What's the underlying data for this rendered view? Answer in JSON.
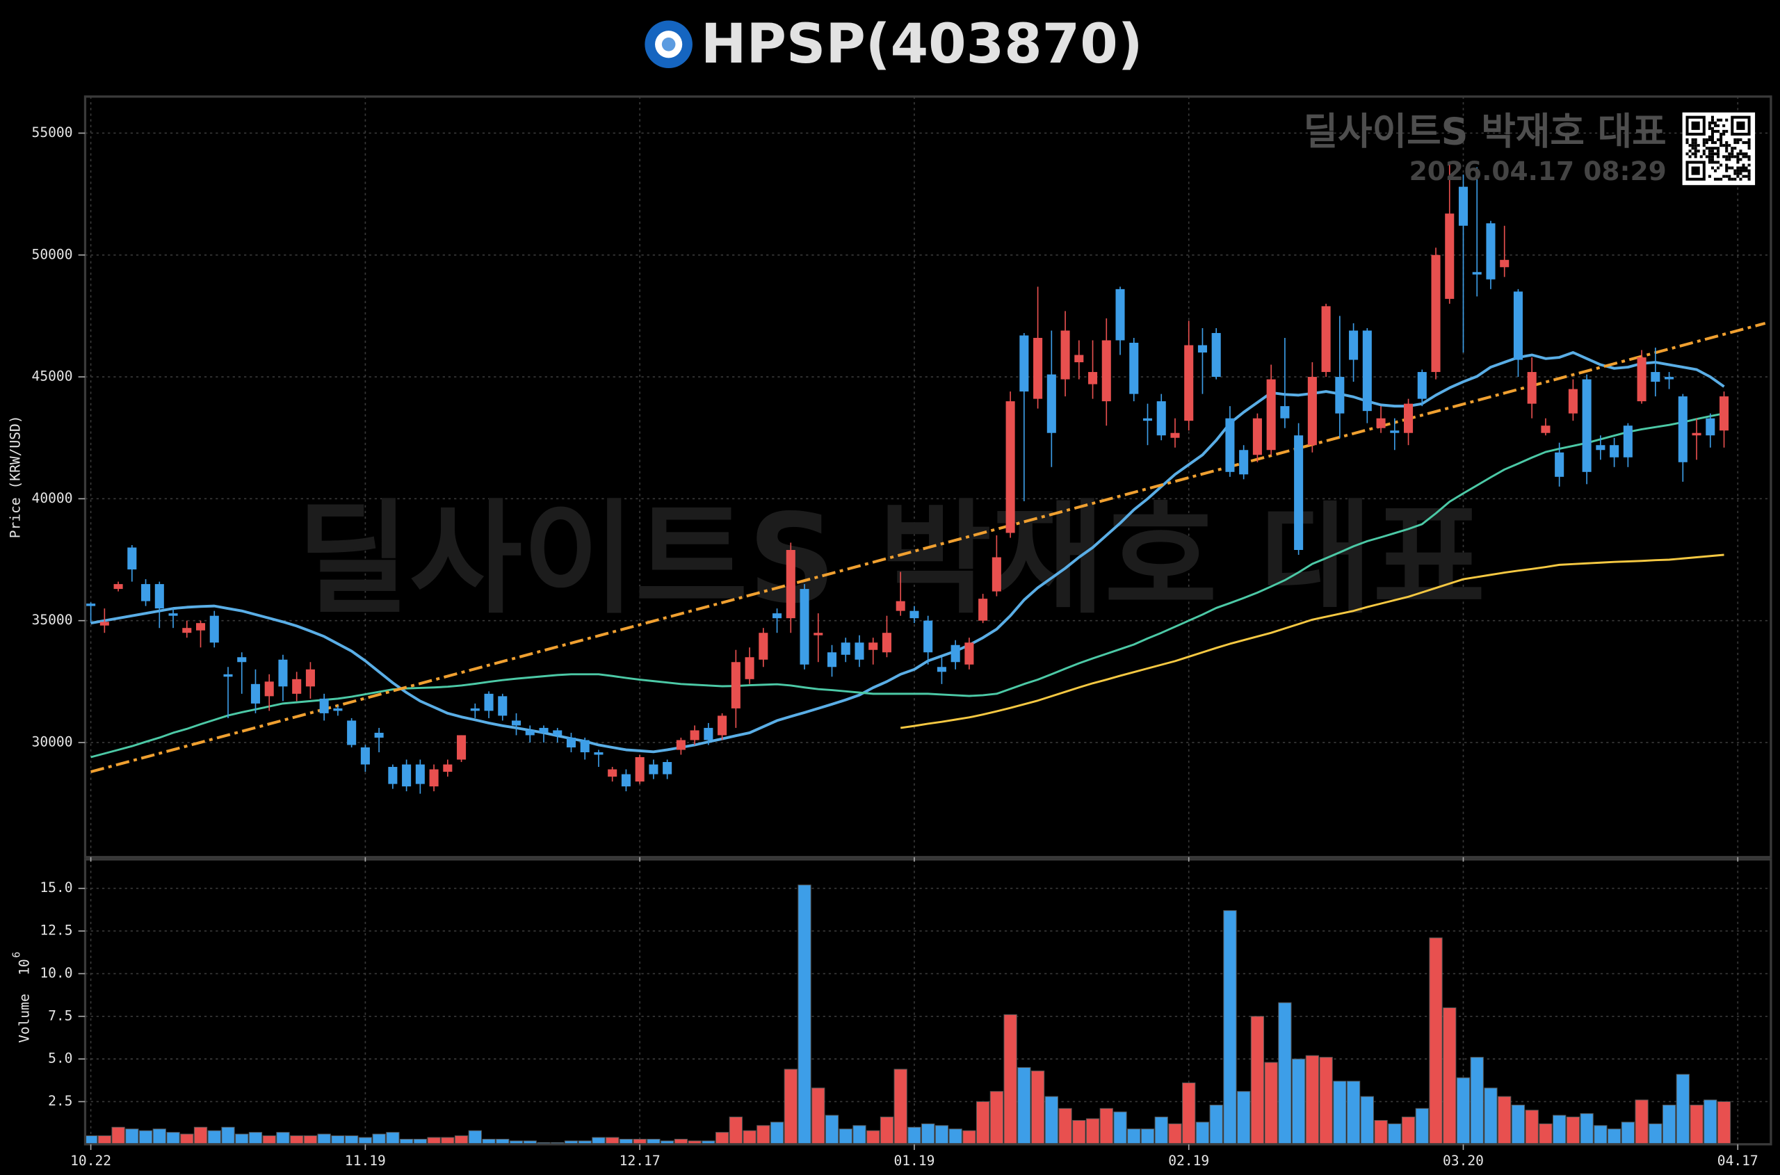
{
  "chart_data": {
    "type": "candlestick",
    "title": "HPSP(403870)",
    "y_label": "Price (KRW/USD)",
    "volume_label": "Volume",
    "volume_multiplier_base": "10",
    "volume_multiplier_exponent": "6",
    "watermark": "딜사이트S 박재호 대표",
    "timestamp": "2026.04.17 08:29",
    "grid": true,
    "up_color": "#e8504f",
    "down_color": "#3d9ee8",
    "categories": [
      "10.22",
      null,
      null,
      null,
      null,
      null,
      null,
      null,
      null,
      null,
      null,
      null,
      null,
      null,
      null,
      null,
      null,
      null,
      null,
      null,
      "11.19",
      null,
      null,
      null,
      null,
      null,
      null,
      null,
      null,
      null,
      null,
      null,
      null,
      null,
      null,
      null,
      null,
      null,
      null,
      null,
      "12.17",
      null,
      null,
      null,
      null,
      null,
      null,
      null,
      null,
      null,
      null,
      null,
      null,
      null,
      null,
      null,
      null,
      null,
      null,
      null,
      "01.19",
      null,
      null,
      null,
      null,
      null,
      null,
      null,
      null,
      null,
      null,
      null,
      null,
      null,
      null,
      null,
      null,
      null,
      null,
      null,
      "02.19",
      null,
      null,
      null,
      null,
      null,
      null,
      null,
      null,
      null,
      null,
      null,
      null,
      null,
      null,
      null,
      null,
      null,
      null,
      null,
      "03.20",
      null,
      null,
      null,
      null,
      null,
      null,
      null,
      null,
      null,
      null,
      null,
      null,
      null,
      null,
      null,
      null,
      null,
      null,
      null,
      "04.17"
    ],
    "open": [
      35700,
      34800,
      36300,
      38000,
      36500,
      36500,
      35300,
      34500,
      34600,
      35200,
      32800,
      33500,
      32400,
      31900,
      33400,
      32000,
      32300,
      31800,
      31400,
      30900,
      29800,
      30400,
      29000,
      29100,
      29100,
      28200,
      28800,
      29300,
      31400,
      32000,
      31900,
      30900,
      30500,
      30600,
      30500,
      30200,
      30100,
      29600,
      28600,
      28700,
      28400,
      29100,
      29200,
      29700,
      30100,
      30600,
      30300,
      31400,
      32600,
      33400,
      35300,
      35100,
      36300,
      34400,
      33700,
      34100,
      34100,
      33800,
      33700,
      35400,
      35400,
      35000,
      33100,
      34000,
      33200,
      35000,
      36200,
      38600,
      46700,
      44100,
      45100,
      44900,
      45600,
      44700,
      44000,
      48600,
      46400,
      43300,
      44000,
      42500,
      43200,
      46300,
      46800,
      43300,
      42000,
      41800,
      42000,
      43800,
      42600,
      42200,
      45200,
      45000,
      46900,
      46900,
      42900,
      42800,
      42700,
      45200,
      45200,
      48200,
      52800,
      49300,
      51300,
      49500,
      48500,
      43900,
      42700,
      41900,
      43500,
      44900,
      42200,
      42200,
      43000,
      44000,
      45200,
      45000,
      44200,
      42600,
      43300,
      42800,
      null
    ],
    "high": [
      35750,
      35500,
      36600,
      38100,
      36700,
      36600,
      35500,
      35000,
      35000,
      35400,
      33100,
      33700,
      33000,
      32800,
      33600,
      32900,
      33300,
      32000,
      31500,
      31000,
      29900,
      30600,
      29100,
      29300,
      29300,
      29100,
      29300,
      30300,
      31600,
      32100,
      32000,
      31200,
      30700,
      30700,
      30600,
      30400,
      30200,
      29700,
      29000,
      28900,
      29500,
      29300,
      29300,
      30200,
      30700,
      30800,
      31200,
      33800,
      33900,
      34700,
      35500,
      38200,
      36500,
      35300,
      34000,
      34300,
      34400,
      34300,
      35200,
      37000,
      35600,
      35200,
      33500,
      34200,
      34300,
      36100,
      38500,
      44400,
      46800,
      48700,
      46900,
      47700,
      46500,
      46500,
      47400,
      48700,
      46600,
      43900,
      44300,
      43300,
      47300,
      47000,
      47000,
      43800,
      42200,
      43500,
      45500,
      46600,
      43100,
      45600,
      48000,
      47500,
      47200,
      47000,
      43800,
      43300,
      44100,
      45300,
      50300,
      53800,
      53300,
      53600,
      51400,
      51200,
      48600,
      45800,
      43300,
      42300,
      44900,
      45100,
      42600,
      42500,
      43100,
      46100,
      46200,
      45200,
      44300,
      43300,
      43500,
      44400,
      null
    ],
    "low": [
      34900,
      34500,
      36200,
      36600,
      35600,
      34700,
      34700,
      34300,
      33900,
      33900,
      31000,
      32000,
      31200,
      31300,
      31700,
      31700,
      31800,
      30900,
      31100,
      29800,
      28800,
      29600,
      28100,
      28000,
      27900,
      28000,
      28600,
      29200,
      31000,
      31000,
      30900,
      30300,
      30000,
      30000,
      30000,
      29600,
      29300,
      29000,
      28400,
      28000,
      28300,
      28500,
      28500,
      29500,
      29900,
      29900,
      30100,
      30600,
      32400,
      33100,
      34500,
      34500,
      33000,
      33300,
      32700,
      33300,
      33100,
      33200,
      33500,
      35200,
      34900,
      33200,
      32400,
      33000,
      33000,
      34900,
      36000,
      38400,
      39900,
      43700,
      41300,
      44200,
      44900,
      44100,
      43000,
      45900,
      44000,
      42200,
      42400,
      42100,
      42800,
      44300,
      44900,
      40900,
      40800,
      41500,
      41800,
      42900,
      37700,
      41900,
      45000,
      42500,
      44800,
      43100,
      42700,
      42000,
      42200,
      43800,
      44900,
      48000,
      46000,
      48300,
      48600,
      49100,
      45000,
      43300,
      42600,
      40500,
      43200,
      40600,
      41600,
      41300,
      41300,
      43900,
      44200,
      44500,
      40700,
      41600,
      42100,
      42100,
      null
    ],
    "close": [
      35600,
      34950,
      36500,
      37100,
      35800,
      35500,
      35200,
      34700,
      34900,
      34100,
      32700,
      33300,
      31600,
      32500,
      32300,
      32600,
      33000,
      31200,
      31300,
      29900,
      29100,
      30200,
      28300,
      28200,
      28300,
      28900,
      29100,
      30300,
      31300,
      31300,
      31100,
      30700,
      30300,
      30400,
      30300,
      29800,
      29600,
      29500,
      28900,
      28200,
      29400,
      28700,
      28700,
      30100,
      30500,
      30100,
      31100,
      33300,
      33500,
      34500,
      35100,
      37900,
      33200,
      34500,
      33100,
      33600,
      33400,
      34100,
      34500,
      35800,
      35100,
      33700,
      32900,
      33300,
      34100,
      35900,
      37600,
      44000,
      44400,
      46600,
      42700,
      46900,
      45900,
      45200,
      46500,
      46500,
      44300,
      43200,
      42600,
      42700,
      46300,
      46000,
      45000,
      41100,
      41000,
      43300,
      44900,
      43300,
      37900,
      45000,
      47900,
      43500,
      45700,
      43600,
      43300,
      42700,
      43900,
      44100,
      50000,
      51700,
      51200,
      49200,
      49000,
      49800,
      45700,
      45200,
      43000,
      40900,
      44500,
      41100,
      42000,
      41700,
      41700,
      45800,
      44800,
      44900,
      41500,
      42700,
      42600,
      44200,
      null
    ],
    "volume": [
      0.5,
      0.5,
      1.0,
      0.9,
      0.8,
      0.9,
      0.7,
      0.6,
      1.0,
      0.8,
      1.0,
      0.6,
      0.7,
      0.5,
      0.7,
      0.5,
      0.5,
      0.6,
      0.5,
      0.5,
      0.4,
      0.6,
      0.7,
      0.3,
      0.3,
      0.4,
      0.4,
      0.5,
      0.8,
      0.3,
      0.3,
      0.2,
      0.2,
      0.1,
      0.1,
      0.2,
      0.2,
      0.4,
      0.4,
      0.3,
      0.3,
      0.3,
      0.2,
      0.3,
      0.2,
      0.2,
      0.7,
      1.6,
      0.8,
      1.1,
      1.3,
      4.4,
      15.2,
      3.3,
      1.7,
      0.9,
      1.1,
      0.8,
      1.6,
      4.4,
      1.0,
      1.2,
      1.1,
      0.9,
      0.8,
      2.5,
      3.1,
      7.6,
      4.5,
      4.3,
      2.8,
      2.1,
      1.4,
      1.5,
      2.1,
      1.9,
      0.9,
      0.9,
      1.6,
      1.2,
      3.6,
      1.3,
      2.3,
      13.7,
      3.1,
      7.5,
      4.8,
      8.3,
      5.0,
      5.2,
      5.1,
      3.7,
      3.7,
      2.8,
      1.4,
      1.2,
      1.6,
      2.1,
      12.1,
      8.0,
      3.9,
      5.1,
      3.3,
      2.8,
      2.3,
      2.0,
      1.2,
      1.7,
      1.6,
      1.8,
      1.1,
      0.9,
      1.3,
      2.6,
      1.2,
      2.3,
      4.1,
      2.3,
      2.6,
      2.5,
      null
    ],
    "moving_averages": [
      {
        "color": "#5aaee6",
        "values": [
          34900,
          35000,
          35100,
          35200,
          35300,
          35400,
          35500,
          35550,
          35580,
          35600,
          35500,
          35400,
          35250,
          35100,
          34950,
          34780,
          34570,
          34350,
          34050,
          33750,
          33350,
          32900,
          32450,
          32050,
          31700,
          31450,
          31200,
          31050,
          30930,
          30800,
          30690,
          30600,
          30500,
          30400,
          30280,
          30160,
          30050,
          29900,
          29800,
          29700,
          29660,
          29620,
          29700,
          29800,
          29900,
          30030,
          30150,
          30280,
          30400,
          30650,
          30900,
          31070,
          31230,
          31400,
          31570,
          31750,
          31950,
          32250,
          32500,
          32800,
          33000,
          33350,
          33550,
          33750,
          34000,
          34300,
          34650,
          35200,
          35850,
          36350,
          36750,
          37150,
          37600,
          38000,
          38500,
          39000,
          39550,
          40000,
          40500,
          41000,
          41400,
          41800,
          42400,
          43100,
          43550,
          43950,
          44350,
          44280,
          44250,
          44320,
          44400,
          44300,
          44180,
          44000,
          43850,
          43800,
          43800,
          43900,
          44250,
          44550,
          44800,
          45020,
          45400,
          45600,
          45800,
          45900,
          45750,
          45800,
          46000,
          45750,
          45500,
          45350,
          45400,
          45550,
          45600,
          45500,
          45400,
          45300,
          45000,
          44600,
          null
        ]
      },
      {
        "color": "#4cc9a6",
        "values": [
          29400,
          29550,
          29700,
          29850,
          30030,
          30200,
          30400,
          30560,
          30750,
          30930,
          31110,
          31240,
          31360,
          31480,
          31600,
          31650,
          31700,
          31750,
          31800,
          31880,
          31980,
          32080,
          32180,
          32220,
          32240,
          32260,
          32290,
          32340,
          32410,
          32490,
          32560,
          32620,
          32670,
          32720,
          32770,
          32800,
          32800,
          32800,
          32730,
          32650,
          32580,
          32520,
          32460,
          32400,
          32370,
          32340,
          32310,
          32320,
          32350,
          32370,
          32390,
          32340,
          32260,
          32190,
          32150,
          32100,
          32050,
          32000,
          32000,
          32000,
          32000,
          32000,
          31970,
          31940,
          31910,
          31940,
          32000,
          32200,
          32400,
          32580,
          32800,
          33030,
          33250,
          33450,
          33640,
          33830,
          34020,
          34270,
          34500,
          34750,
          35000,
          35250,
          35520,
          35720,
          35930,
          36150,
          36400,
          36660,
          36980,
          37330,
          37560,
          37800,
          38050,
          38260,
          38420,
          38590,
          38760,
          38960,
          39400,
          39880,
          40220,
          40550,
          40880,
          41200,
          41440,
          41690,
          41920,
          42050,
          42170,
          42290,
          42440,
          42590,
          42740,
          42850,
          42940,
          43030,
          43140,
          43270,
          43390,
          43500,
          null
        ]
      },
      {
        "color": "#f5c842",
        "values": [
          null,
          null,
          null,
          null,
          null,
          null,
          null,
          null,
          null,
          null,
          null,
          null,
          null,
          null,
          null,
          null,
          null,
          null,
          null,
          null,
          null,
          null,
          null,
          null,
          null,
          null,
          null,
          null,
          null,
          null,
          null,
          null,
          null,
          null,
          null,
          null,
          null,
          null,
          null,
          null,
          null,
          null,
          null,
          null,
          null,
          null,
          null,
          null,
          null,
          null,
          null,
          null,
          null,
          null,
          null,
          null,
          null,
          null,
          null,
          30600,
          30680,
          30770,
          30850,
          30940,
          31030,
          31150,
          31280,
          31420,
          31570,
          31720,
          31900,
          32080,
          32260,
          32430,
          32580,
          32740,
          32890,
          33040,
          33190,
          33340,
          33520,
          33700,
          33880,
          34050,
          34200,
          34350,
          34500,
          34680,
          34860,
          35040,
          35160,
          35280,
          35400,
          35560,
          35700,
          35840,
          35980,
          36160,
          36340,
          36520,
          36700,
          36790,
          36880,
          36970,
          37050,
          37120,
          37200,
          37290,
          37320,
          37350,
          37380,
          37410,
          37430,
          37450,
          37480,
          37500,
          37550,
          37600,
          37650,
          37700,
          null
        ]
      }
    ],
    "trendline": {
      "color": "#f0a030",
      "start": {
        "x": 0,
        "y": 28800
      },
      "end": {
        "x": 122,
        "y": 47200
      }
    },
    "ylim": [
      25300,
      56500
    ],
    "yticks": [
      30000,
      35000,
      40000,
      45000,
      50000,
      55000
    ],
    "volume_ylim": [
      0,
      16.7
    ],
    "volume_yticks": [
      2.5,
      {
        "value": 5,
        "label": "5.0"
      },
      7.5,
      {
        "value": 10,
        "label": "10.0"
      },
      12.5,
      {
        "value": 15,
        "label": "15.0"
      }
    ]
  }
}
